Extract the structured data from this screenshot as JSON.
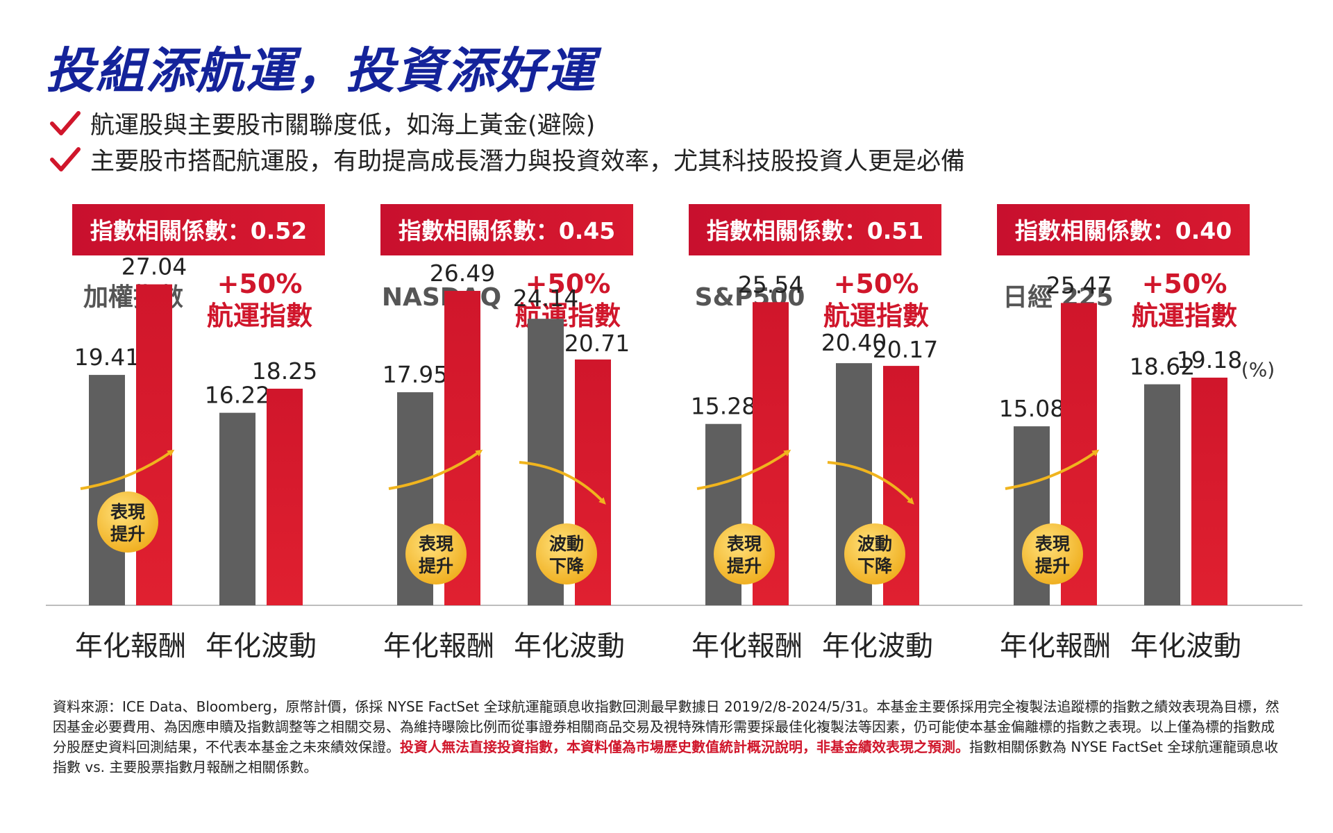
{
  "title": "投組添航運，投資添好運",
  "bullets": [
    "航運股與主要股市關聯度低，如海上黃金(避險)",
    "主要股市搭配航運股，有助提高成長潛力與投資效率，尤其科技股投資人更是必備"
  ],
  "colors": {
    "title": "#14239a",
    "red": "#d0162b",
    "gray": "#5f5f5f",
    "gold": "#f0b41e",
    "check": "#d0162b"
  },
  "chart_data": {
    "type": "bar",
    "unit_label": "(%)",
    "category_labels": [
      "年化報酬",
      "年化波動"
    ],
    "series_b_label": [
      "+50%",
      "航運指數"
    ],
    "groups": [
      {
        "badge": "指數相關係數：0.52",
        "index_name": "加權指數",
        "return": [
          19.41,
          27.04
        ],
        "volatility": [
          16.22,
          18.25
        ],
        "return_tag": "表現提升",
        "volatility_tag": ""
      },
      {
        "badge": "指數相關係數：0.45",
        "index_name": "NASDAQ",
        "return": [
          17.95,
          26.49
        ],
        "volatility": [
          24.14,
          20.71
        ],
        "return_tag": "表現提升",
        "volatility_tag": "波動下降"
      },
      {
        "badge": "指數相關係數：0.51",
        "index_name": "S&P500",
        "return": [
          15.28,
          25.54
        ],
        "volatility": [
          20.4,
          20.17
        ],
        "return_tag": "表現提升",
        "volatility_tag": "波動下降"
      },
      {
        "badge": "指數相關係數：0.40",
        "index_name": "日經 225",
        "return": [
          15.08,
          25.47
        ],
        "volatility": [
          18.62,
          19.18
        ],
        "return_tag": "表現提升",
        "volatility_tag": ""
      }
    ]
  },
  "footnote": {
    "normal": "資料來源：ICE Data、Bloomberg，原幣計價，係採 NYSE FactSet 全球航運龍頭息收指數回測最早數據日 2019/2/8-2024/5/31。本基金主要係採用完全複製法追蹤標的指數之績效表現為目標，然因基金必要費用、為因應申贖及指數調整等之相關交易、為維持曝險比例而從事證券相關商品交易及視特殊情形需要採最佳化複製法等因素，仍可能使本基金偏離標的指數之表現。以上僅為標的指數成分股歷史資料回測結果，不代表本基金之未來績效保證。",
    "highlight": "投資人無法直接投資指數，本資料僅為市場歷史數值統計概況說明，非基金績效表現之預測。",
    "tail": "指數相關係數為 NYSE FactSet 全球航運龍頭息收指數 vs. 主要股票指數月報酬之相關係數。"
  }
}
